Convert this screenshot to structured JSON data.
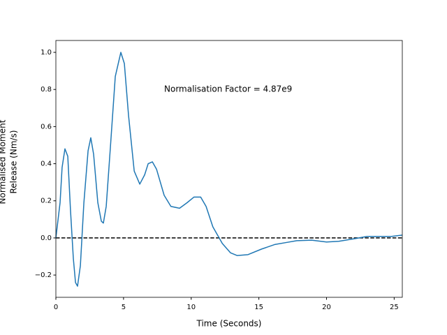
{
  "chart_data": {
    "type": "line",
    "xlabel": "Time (Seconds)",
    "ylabel": [
      "Normalised Moment",
      "Release (Nm/s)"
    ],
    "annotation": {
      "text": "Normalisation Factor = 4.87e9",
      "x": 8,
      "y": 0.8
    },
    "reference_line": {
      "value": 0,
      "color": "#000000",
      "style": "dashed"
    },
    "xlim": [
      0,
      25.6
    ],
    "ylim": [
      -0.32,
      1.064
    ],
    "xticks": [
      0,
      5,
      10,
      15,
      20,
      25
    ],
    "yticks": [
      {
        "value": -0.2,
        "label": "−0.2"
      },
      {
        "value": 0,
        "label": "0.0"
      },
      0.2,
      0.4,
      0.6,
      0.8,
      {
        "value": 1,
        "label": "1.0"
      }
    ],
    "series": [
      {
        "name": null,
        "color": "#1f77b4",
        "x": [
          0,
          0.31,
          0.46,
          0.67,
          0.88,
          1.08,
          1.29,
          1.45,
          1.6,
          1.81,
          2.07,
          2.38,
          2.58,
          2.79,
          3.1,
          3.36,
          3.51,
          3.72,
          4.03,
          4.39,
          4.8,
          5.06,
          5.37,
          5.79,
          6.2,
          6.56,
          6.82,
          7.13,
          7.44,
          8.0,
          8.5,
          9.14,
          9.7,
          10.2,
          10.7,
          11.1,
          11.6,
          12.3,
          12.9,
          13.4,
          14.2,
          15.2,
          16.2,
          17.0,
          17.8,
          18.9,
          20.0,
          20.9,
          22.0,
          23.0,
          24.0,
          24.8,
          25.6
        ],
        "values": [
          0,
          0.19,
          0.38,
          0.48,
          0.44,
          0.15,
          -0.11,
          -0.24,
          -0.26,
          -0.15,
          0.19,
          0.47,
          0.54,
          0.45,
          0.19,
          0.09,
          0.08,
          0.17,
          0.49,
          0.87,
          1.0,
          0.94,
          0.66,
          0.36,
          0.29,
          0.34,
          0.4,
          0.41,
          0.37,
          0.23,
          0.17,
          0.16,
          0.19,
          0.22,
          0.22,
          0.17,
          0.06,
          -0.03,
          -0.08,
          -0.095,
          -0.09,
          -0.06,
          -0.035,
          -0.025,
          -0.015,
          -0.012,
          -0.022,
          -0.018,
          -0.005,
          0.008,
          0.008,
          0.008,
          0.015
        ]
      }
    ]
  }
}
